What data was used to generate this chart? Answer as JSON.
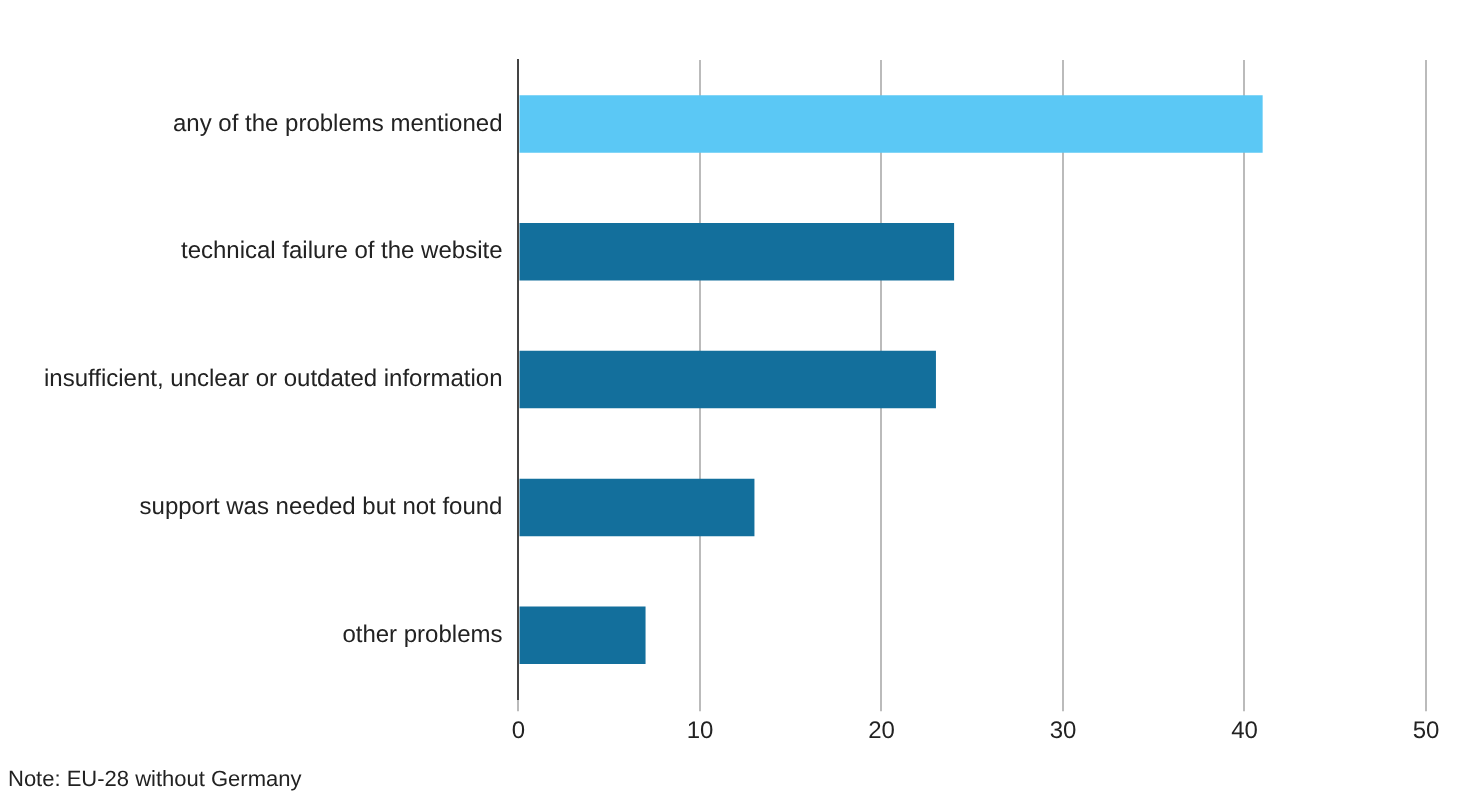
{
  "chart_data": {
    "type": "bar",
    "orientation": "horizontal",
    "categories": [
      "any of the problems mentioned",
      "technical failure of the website",
      "insufficient, unclear or outdated information",
      "support was needed but not found",
      "other problems"
    ],
    "values": [
      41,
      24,
      23,
      13,
      7
    ],
    "colors": [
      "#5bc8f5",
      "#136f9c",
      "#136f9c",
      "#136f9c",
      "#136f9c"
    ],
    "xlim": [
      0,
      50
    ],
    "xticks": [
      0,
      10,
      20,
      30,
      40,
      50
    ],
    "grid": "x",
    "legend": false,
    "annotations": [
      "Note: EU-28 without Germany"
    ]
  }
}
